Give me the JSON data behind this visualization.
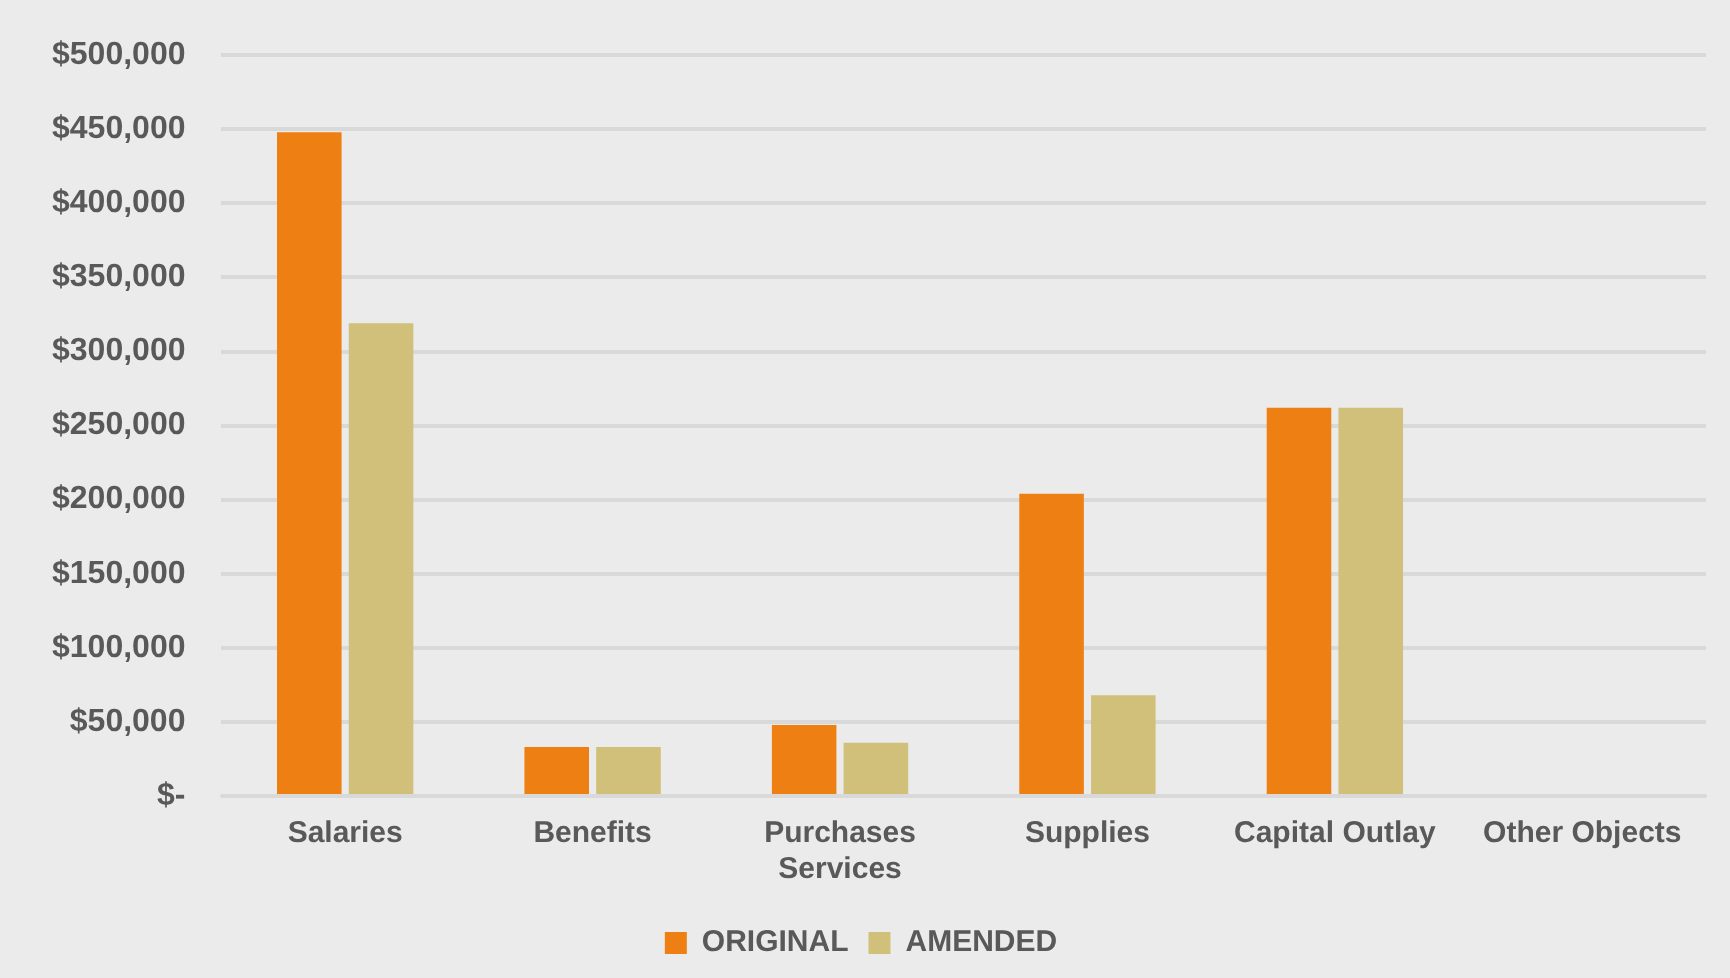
{
  "chart_data": {
    "type": "bar",
    "categories": [
      "Salaries",
      "Benefits",
      "Purchases Services",
      "Supplies",
      "Capital Outlay",
      "Other Objects"
    ],
    "series": [
      {
        "name": "ORIGINAL",
        "color": "#ee8013",
        "values": [
          448000,
          33000,
          48000,
          204000,
          262000,
          0
        ]
      },
      {
        "name": "AMENDED",
        "color": "#d0c079",
        "values": [
          319000,
          33000,
          36000,
          68000,
          262000,
          0
        ]
      }
    ],
    "ylim": [
      0,
      500000
    ],
    "yticks": [
      {
        "value": 0,
        "label": "$-"
      },
      {
        "value": 50000,
        "label": "$50,000"
      },
      {
        "value": 100000,
        "label": "$100,000"
      },
      {
        "value": 150000,
        "label": "$150,000"
      },
      {
        "value": 200000,
        "label": "$200,000"
      },
      {
        "value": 250000,
        "label": "$250,000"
      },
      {
        "value": 300000,
        "label": "$300,000"
      },
      {
        "value": 350000,
        "label": "$350,000"
      },
      {
        "value": 400000,
        "label": "$400,000"
      },
      {
        "value": 450000,
        "label": "$450,000"
      },
      {
        "value": 500000,
        "label": "$500,000"
      }
    ],
    "grid": "y",
    "legend": "bottom"
  }
}
